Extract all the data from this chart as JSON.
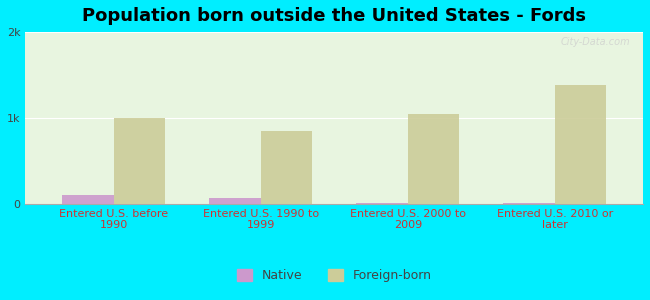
{
  "title": "Population born outside the United States - Fords",
  "categories": [
    "Entered U.S. before\n1990",
    "Entered U.S. 1990 to\n1999",
    "Entered U.S. 2000 to\n2009",
    "Entered U.S. 2010 or\nlater"
  ],
  "native_values": [
    100,
    70,
    10,
    10
  ],
  "foreign_values": [
    1000,
    850,
    1050,
    1380
  ],
  "native_color": "#cc99cc",
  "foreign_color": "#cccc99",
  "background_color": "#00eeff",
  "plot_bg_top": "#e8f5e8",
  "plot_bg_bottom": "#f0fff0",
  "ylim": [
    0,
    2000
  ],
  "yticks": [
    0,
    1000,
    2000
  ],
  "ytick_labels": [
    "0",
    "1k",
    "2k"
  ],
  "bar_width": 0.35,
  "title_fontsize": 13,
  "tick_fontsize": 8,
  "legend_fontsize": 9,
  "watermark": "City-Data.com"
}
